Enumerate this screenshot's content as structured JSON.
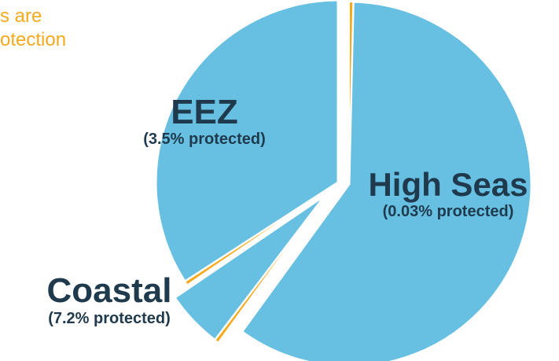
{
  "caption": {
    "line1": "s are",
    "line2": "otection"
  },
  "colors": {
    "ocean": "#67c0e2",
    "protected": "#f5a91c",
    "label": "#1f3a4d",
    "caption": "#f5a91c"
  },
  "chart_data": {
    "type": "pie",
    "title": "",
    "exploded": true,
    "slices": [
      {
        "name": "High Seas",
        "subtitle": "(0.03% protected)",
        "share": 0.6,
        "protected_pct": 0.03
      },
      {
        "name": "Coastal",
        "subtitle": "(7.2% protected)",
        "share": 0.055,
        "protected_pct": 7.2
      },
      {
        "name": "EEZ",
        "subtitle": "(3.5% protected)",
        "share": 0.345,
        "protected_pct": 3.5
      }
    ]
  }
}
